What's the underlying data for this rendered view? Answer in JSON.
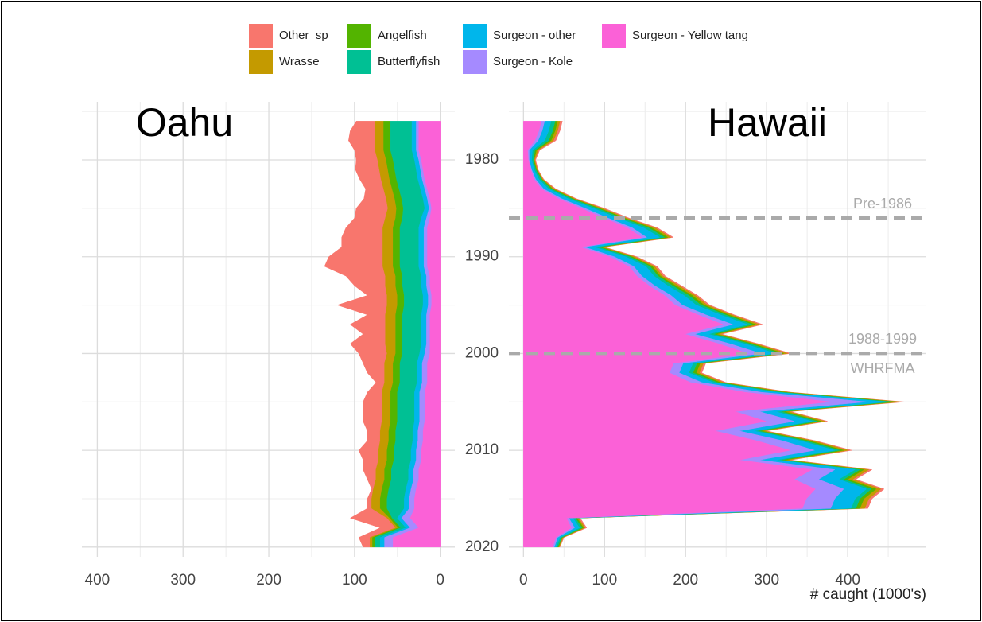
{
  "chart_data": {
    "type": "area",
    "x_label": "# caught (1000's)",
    "y": [
      1976,
      1977,
      1978,
      1979,
      1980,
      1981,
      1982,
      1983,
      1984,
      1985,
      1986,
      1987,
      1988,
      1989,
      1990,
      1991,
      1992,
      1993,
      1994,
      1995,
      1996,
      1997,
      1998,
      1999,
      2000,
      2001,
      2002,
      2003,
      2004,
      2005,
      2006,
      2007,
      2008,
      2009,
      2010,
      2011,
      2012,
      2013,
      2014,
      2015,
      2016,
      2017,
      2018,
      2019,
      2020
    ],
    "ylim": [
      1974,
      2021
    ],
    "yticks": [
      1980,
      1990,
      2000,
      2010,
      2020
    ],
    "grid": true,
    "series": [
      {
        "name": "Other_sp",
        "color": "#F8766D"
      },
      {
        "name": "Wrasse",
        "color": "#C49A00"
      },
      {
        "name": "Angelfish",
        "color": "#53B400"
      },
      {
        "name": "Butterflyfish",
        "color": "#00C094"
      },
      {
        "name": "Surgeon - other",
        "color": "#00B6EB"
      },
      {
        "name": "Surgeon - Kole",
        "color": "#A58AFF"
      },
      {
        "name": "Surgeon - Yellow tang",
        "color": "#FB61D7"
      }
    ],
    "panels": [
      {
        "title": "Oahu",
        "reversed": true,
        "xlim": [
          -17,
          418
        ],
        "xticks": [
          0,
          100,
          200,
          300,
          400
        ],
        "values": [
          [
            22,
            29,
            31,
            24,
            25,
            28,
            25,
            21,
            26,
            37,
            36,
            43,
            48,
            48,
            63,
            68,
            46,
            36,
            23,
            58,
            21,
            41,
            26,
            41,
            33,
            25,
            20,
            10,
            17,
            22,
            22,
            22,
            15,
            15,
            23,
            18,
            15,
            10,
            2,
            5,
            5,
            43,
            18,
            13,
            8
          ],
          [
            10,
            10,
            10,
            10,
            10,
            10,
            10,
            10,
            10,
            10,
            12,
            12,
            12,
            12,
            12,
            12,
            12,
            12,
            12,
            12,
            12,
            12,
            12,
            12,
            10,
            10,
            10,
            10,
            10,
            10,
            10,
            10,
            10,
            10,
            10,
            10,
            10,
            10,
            10,
            10,
            10,
            3,
            3,
            3,
            3
          ],
          [
            8,
            8,
            8,
            8,
            8,
            8,
            8,
            8,
            8,
            8,
            8,
            8,
            8,
            8,
            8,
            8,
            8,
            8,
            8,
            8,
            8,
            8,
            8,
            8,
            8,
            8,
            8,
            8,
            8,
            8,
            8,
            8,
            8,
            8,
            8,
            8,
            8,
            8,
            8,
            8,
            8,
            3,
            3,
            3,
            3
          ],
          [
            25,
            25,
            25,
            25,
            25,
            25,
            25,
            25,
            25,
            25,
            22,
            22,
            22,
            22,
            22,
            22,
            22,
            22,
            22,
            22,
            22,
            22,
            22,
            22,
            20,
            20,
            20,
            20,
            20,
            20,
            20,
            20,
            20,
            20,
            20,
            20,
            20,
            20,
            20,
            20,
            20,
            6,
            6,
            6,
            6
          ],
          [
            5,
            5,
            5,
            5,
            5,
            5,
            5,
            5,
            5,
            5,
            6,
            6,
            6,
            6,
            6,
            6,
            6,
            6,
            6,
            6,
            6,
            6,
            6,
            6,
            6,
            6,
            6,
            6,
            6,
            6,
            6,
            6,
            6,
            6,
            6,
            6,
            6,
            6,
            6,
            6,
            6,
            5,
            5,
            5,
            5
          ],
          [
            3,
            3,
            3,
            3,
            3,
            3,
            3,
            3,
            3,
            3,
            4,
            4,
            4,
            4,
            4,
            4,
            4,
            4,
            4,
            4,
            4,
            4,
            4,
            4,
            6,
            6,
            6,
            6,
            6,
            6,
            6,
            6,
            6,
            6,
            6,
            6,
            6,
            6,
            6,
            6,
            6,
            10,
            10,
            10,
            10
          ],
          [
            25,
            25,
            25,
            25,
            22,
            20,
            18,
            15,
            12,
            10,
            12,
            15,
            15,
            15,
            15,
            15,
            12,
            12,
            10,
            10,
            12,
            12,
            12,
            12,
            12,
            15,
            15,
            15,
            18,
            18,
            18,
            18,
            20,
            20,
            22,
            22,
            25,
            25,
            28,
            30,
            30,
            35,
            25,
            55,
            55
          ]
        ]
      },
      {
        "title": "Hawaii",
        "reversed": false,
        "xlim": [
          -18,
          497
        ],
        "xticks": [
          0,
          100,
          200,
          300,
          400
        ],
        "annotations": [
          {
            "y": 1986,
            "text": [
              "Pre-1986"
            ]
          },
          {
            "y": 2000,
            "text": [
              "1988-1999",
              "WHRFMA"
            ]
          }
        ],
        "values": [
          [
            3,
            3,
            3,
            2,
            1,
            1,
            1,
            2,
            2,
            3,
            3,
            3,
            3,
            2,
            3,
            3,
            3,
            3,
            3,
            3,
            3,
            4,
            3,
            3,
            4,
            3,
            3,
            3,
            3,
            4,
            3,
            3,
            3,
            3,
            4,
            3,
            4,
            4,
            4,
            4,
            4,
            2,
            2,
            1,
            1
          ],
          [
            3,
            3,
            3,
            2,
            1,
            1,
            1,
            2,
            2,
            3,
            3,
            4,
            4,
            3,
            3,
            3,
            3,
            4,
            4,
            4,
            4,
            5,
            4,
            4,
            5,
            4,
            4,
            4,
            5,
            6,
            5,
            5,
            4,
            5,
            6,
            5,
            6,
            6,
            6,
            6,
            6,
            2,
            2,
            1,
            1
          ],
          [
            3,
            3,
            3,
            2,
            1,
            1,
            1,
            2,
            2,
            3,
            3,
            4,
            4,
            3,
            3,
            3,
            3,
            4,
            4,
            4,
            4,
            4,
            4,
            4,
            4,
            4,
            4,
            4,
            5,
            5,
            5,
            5,
            4,
            5,
            5,
            5,
            5,
            5,
            6,
            5,
            5,
            2,
            2,
            1,
            1
          ],
          [
            5,
            5,
            5,
            3,
            2,
            2,
            3,
            3,
            4,
            5,
            5,
            6,
            6,
            5,
            5,
            5,
            5,
            6,
            6,
            6,
            6,
            6,
            6,
            6,
            6,
            5,
            5,
            5,
            6,
            6,
            6,
            6,
            5,
            6,
            6,
            6,
            6,
            6,
            6,
            6,
            6,
            3,
            3,
            2,
            2
          ],
          [
            8,
            8,
            8,
            4,
            3,
            3,
            4,
            6,
            8,
            10,
            12,
            14,
            16,
            12,
            14,
            15,
            15,
            16,
            16,
            17,
            18,
            18,
            17,
            18,
            18,
            12,
            12,
            14,
            18,
            25,
            20,
            22,
            18,
            22,
            25,
            20,
            25,
            25,
            28,
            25,
            25,
            5,
            6,
            3,
            2
          ],
          [
            4,
            4,
            4,
            2,
            1,
            1,
            2,
            3,
            4,
            5,
            5,
            6,
            6,
            5,
            6,
            6,
            6,
            7,
            8,
            9,
            10,
            12,
            12,
            14,
            16,
            12,
            12,
            14,
            20,
            45,
            30,
            35,
            30,
            32,
            30,
            25,
            28,
            30,
            35,
            35,
            35,
            3,
            4,
            2,
            2
          ],
          [
            22,
            19,
            14,
            5,
            6,
            9,
            13,
            22,
            43,
            71,
            99,
            128,
            146,
            70,
            106,
            130,
            140,
            155,
            174,
            187,
            215,
            246,
            199,
            241,
            277,
            185,
            180,
            206,
            273,
            379,
            261,
            299,
            236,
            287,
            329,
            266,
            356,
            334,
            360,
            349,
            344,
            53,
            59,
            40,
            36
          ]
        ]
      }
    ]
  }
}
